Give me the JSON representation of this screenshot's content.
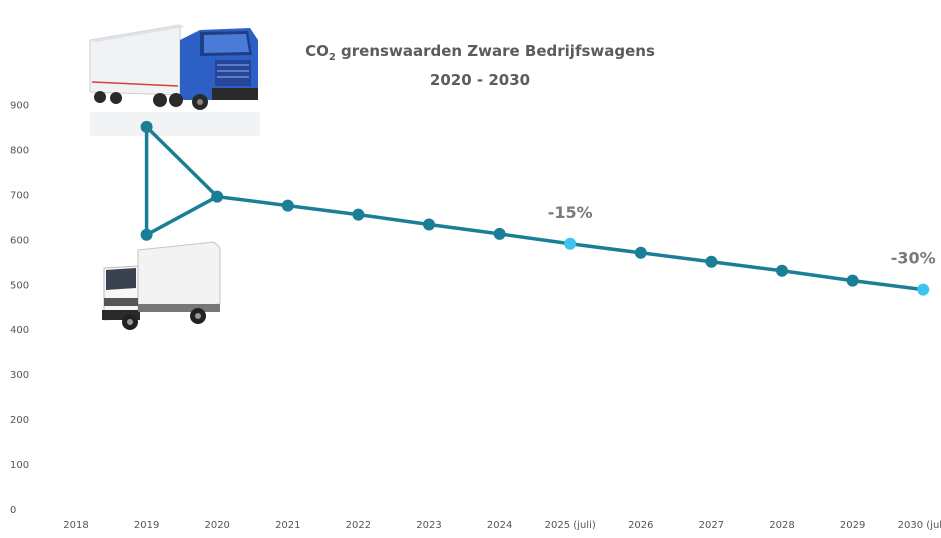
{
  "chart_data": {
    "type": "line",
    "title_prefix": "CO",
    "title_sub": "2",
    "title_rest": " grenswaarden Zware Bedrijfswagens",
    "subtitle": "2020 - 2030",
    "categories": [
      "2018",
      "2019",
      "2020",
      "2021",
      "2022",
      "2023",
      "2024",
      "2025 (juli)",
      "2026",
      "2027",
      "2028",
      "2029",
      "2030 (juli)"
    ],
    "series": [
      {
        "values": [
          null,
          null,
          695,
          675,
          655,
          633,
          612,
          590,
          570,
          550,
          530,
          508,
          488
        ]
      }
    ],
    "extra_points": [
      {
        "category": "2019",
        "value": 850
      },
      {
        "category": "2019",
        "value": 610
      }
    ],
    "highlight_categories": [
      "2025 (juli)",
      "2030 (juli)"
    ],
    "annotations": [
      {
        "category": "2025 (juli)",
        "text": "-15%"
      },
      {
        "category": "2030 (juli)",
        "text": "-30%"
      }
    ],
    "yticks": [
      0,
      100,
      200,
      300,
      400,
      500,
      600,
      700,
      800,
      900
    ],
    "ylim": [
      0,
      950
    ],
    "grid": false,
    "colors": {
      "line": "#1a7f96",
      "marker": "#1a7f96",
      "highlight": "#3cc4ee",
      "text": "#555555",
      "annotation": "#7a7a7a"
    },
    "images": [
      {
        "icon": "heavy-truck-image",
        "category": "2019"
      },
      {
        "icon": "light-truck-image",
        "category": "2019"
      }
    ]
  }
}
